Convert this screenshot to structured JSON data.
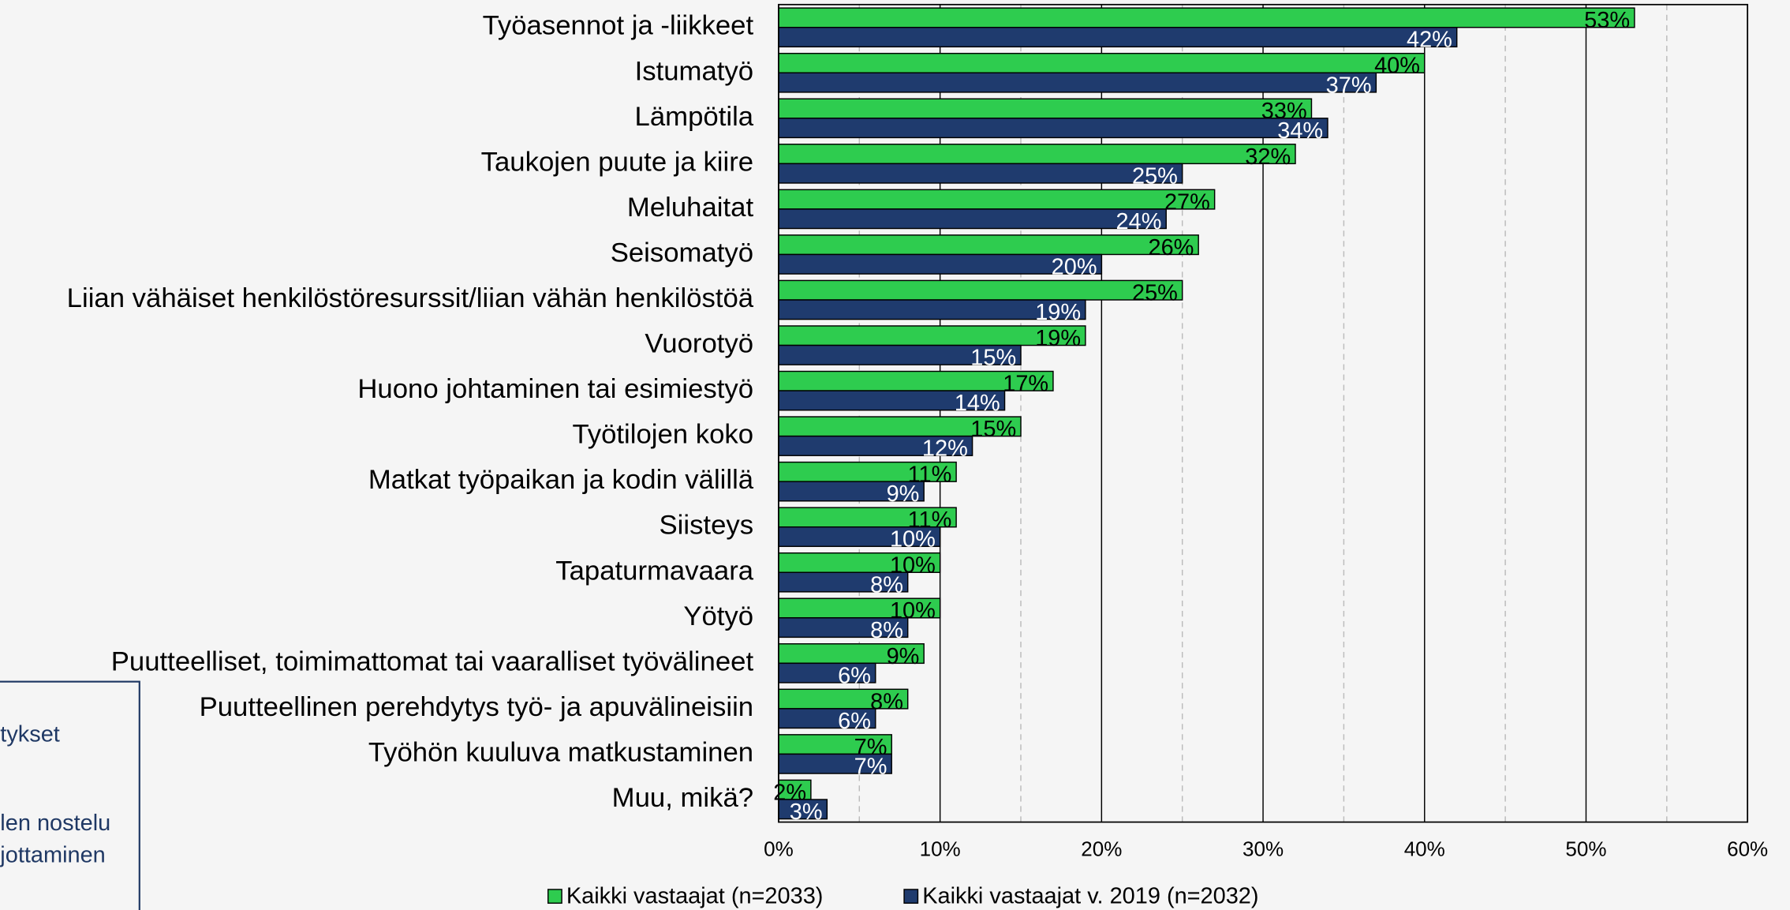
{
  "chart_data": {
    "type": "hbar",
    "categories": [
      "Työasennot ja -liikkeet",
      "Istumatyö",
      "Lämpötila",
      "Taukojen puute ja kiire",
      "Meluhaitat",
      "Seisomatyö",
      "Liian vähäiset henkilöstöresurssit/liian vähän henkilöstöä",
      "Vuorotyö",
      "Huono johtaminen tai esimiestyö",
      "Työtilojen koko",
      "Matkat työpaikan ja kodin välillä",
      "Siisteys",
      "Tapaturmavaara",
      "Yötyö",
      "Puutteelliset, toimimattomat tai vaaralliset työvälineet",
      "Puutteellinen perehdytys työ- ja apuvälineisiin",
      "Työhön kuuluva matkustaminen",
      "Muu, mikä?"
    ],
    "series": [
      {
        "name": "Kaikki vastaajat (n=2033)",
        "color": "#2ecc4f",
        "values": [
          53,
          40,
          33,
          32,
          27,
          26,
          25,
          19,
          17,
          15,
          11,
          11,
          10,
          10,
          9,
          8,
          7,
          2
        ],
        "value_labels": [
          "53%",
          "40%",
          "33%",
          "32%",
          "27%",
          "26%",
          "25%",
          "19%",
          "17%",
          "15%",
          "11%",
          "11%",
          "10%",
          "10%",
          "9%",
          "8%",
          "7%",
          "2%"
        ]
      },
      {
        "name": "Kaikki vastaajat v. 2019 (n=2032)",
        "color": "#1f3b6e",
        "values": [
          42,
          37,
          34,
          25,
          24,
          20,
          19,
          15,
          14,
          12,
          9,
          10,
          8,
          8,
          6,
          6,
          7,
          3
        ],
        "value_labels": [
          "42%",
          "37%",
          "34%",
          "25%",
          "24%",
          "20%",
          "19%",
          "15%",
          "14%",
          "12%",
          "9%",
          "10%",
          "8%",
          "8%",
          "6%",
          "6%",
          "7%",
          "3%"
        ]
      }
    ],
    "xlim": [
      0,
      60
    ],
    "xticks": [
      {
        "value": 0,
        "label": "0%"
      },
      {
        "value": 10,
        "label": "10%"
      },
      {
        "value": 20,
        "label": "20%"
      },
      {
        "value": 30,
        "label": "30%"
      },
      {
        "value": 40,
        "label": "40%"
      },
      {
        "value": 50,
        "label": "50%"
      },
      {
        "value": 60,
        "label": "60%"
      }
    ],
    "xminor": [
      5,
      15,
      25,
      35,
      45,
      55
    ],
    "grid": true,
    "legend": "bottom"
  },
  "side_panel": {
    "lines": [
      "tykset",
      "len nostelu",
      "jottaminen"
    ]
  }
}
